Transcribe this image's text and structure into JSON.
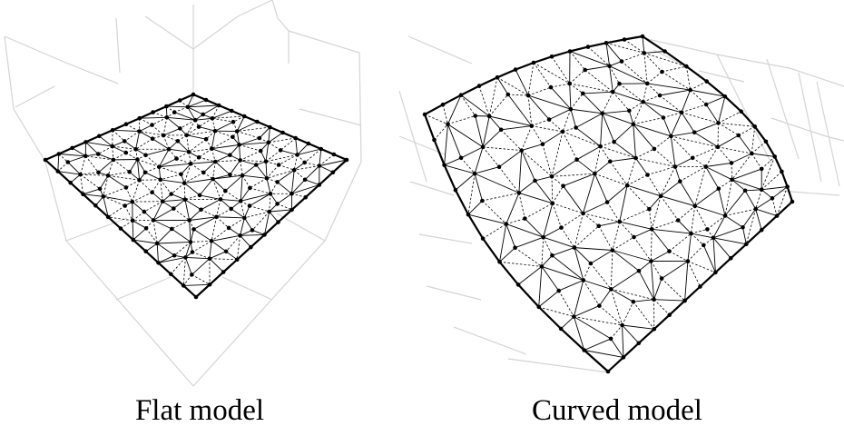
{
  "panels": [
    {
      "id": "flat",
      "caption": "Flat model"
    },
    {
      "id": "curved",
      "caption": "Curved model"
    }
  ],
  "colors": {
    "background": "#ffffff",
    "mesh": "#000000",
    "axes_grid": "#d4d4d4"
  }
}
